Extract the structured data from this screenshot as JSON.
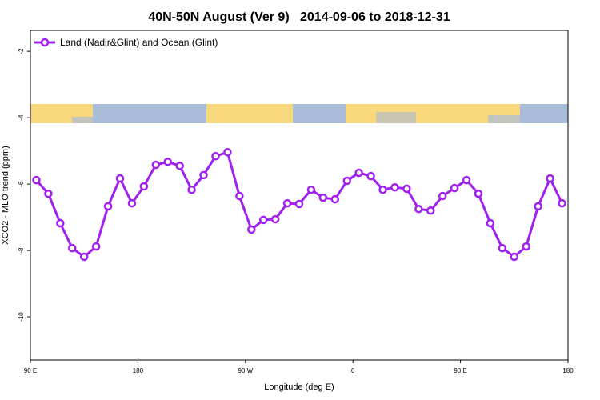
{
  "chart_data": {
    "type": "line",
    "title": "40N-50N August (Ver 9)   2014-09-06 to 2018-12-31",
    "x_label": "Longitude (deg E)",
    "y_label": "XCO2 - MLO trend (ppm)",
    "x": [
      95,
      105,
      115,
      125,
      135,
      145,
      155,
      165,
      175,
      185,
      195,
      205,
      215,
      225,
      235,
      245,
      255,
      265,
      275,
      285,
      295,
      305,
      315,
      325,
      335,
      345,
      355,
      365,
      375,
      385,
      395,
      405,
      415,
      425,
      435,
      445,
      455,
      465,
      475,
      485,
      495,
      505,
      515,
      525,
      535
    ],
    "series": [
      {
        "name": "Land (Nadir&Glint) and Ocean (Glint)",
        "color": "#a020f0",
        "values": [
          -5.88,
          -6.29,
          -7.18,
          -7.93,
          -8.19,
          -7.88,
          -6.67,
          -5.83,
          -6.58,
          -6.07,
          -5.42,
          -5.33,
          -5.45,
          -6.17,
          -5.73,
          -5.16,
          -5.04,
          -6.36,
          -7.37,
          -7.08,
          -7.06,
          -6.58,
          -6.6,
          -6.17,
          -6.41,
          -6.46,
          -5.9,
          -5.66,
          -5.76,
          -6.17,
          -6.1,
          -6.14,
          -6.75,
          -6.8,
          -6.36,
          -6.12,
          -5.88,
          -6.29,
          -7.18,
          -7.93,
          -8.19,
          -7.88,
          -6.67,
          -5.83,
          -6.58
        ]
      }
    ],
    "xlim": [
      90,
      540
    ],
    "xticks": [
      {
        "value": 90,
        "label": "90 E"
      },
      180,
      {
        "value": 270,
        "label": "90 W"
      },
      {
        "value": 360,
        "label": "0"
      },
      {
        "value": 450,
        "label": "90 E"
      },
      {
        "value": 540,
        "label": "180"
      }
    ],
    "ylim": [
      -11.3,
      -1.37
    ],
    "yticks": [
      -10,
      -8,
      -6,
      -4,
      -2
    ],
    "legend": "top-left"
  }
}
